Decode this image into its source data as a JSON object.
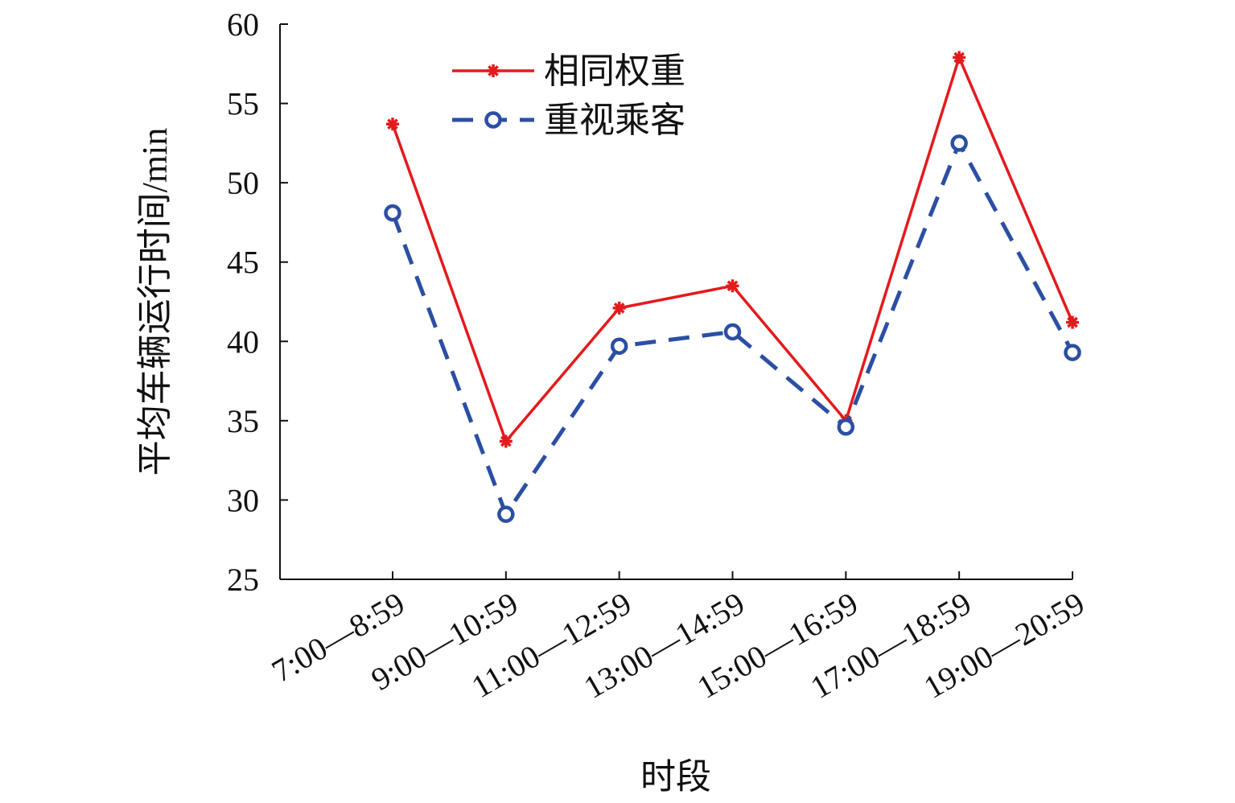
{
  "chart_data": {
    "type": "line",
    "xlabel": "时段",
    "ylabel": "平均车辆运行时间/min",
    "categories": [
      "7:00—8:59",
      "9:00—10:59",
      "11:00—12:59",
      "13:00—14:59",
      "15:00—16:59",
      "17:00—18:59",
      "19:00—20:59"
    ],
    "ylim": [
      25,
      60
    ],
    "yticks": [
      25,
      30,
      35,
      40,
      45,
      50,
      55,
      60
    ],
    "grid": false,
    "legend_position": "top",
    "series": [
      {
        "name": "相同权重",
        "values": [
          53.7,
          33.7,
          42.1,
          43.5,
          35.0,
          57.9,
          41.2
        ],
        "color": "#e41a1c",
        "line_style": "solid",
        "marker": "asterisk"
      },
      {
        "name": "重视乘客",
        "values": [
          48.1,
          29.1,
          39.7,
          40.6,
          34.6,
          52.5,
          39.3
        ],
        "color": "#2b4fa3",
        "line_style": "dashed",
        "marker": "circle"
      }
    ]
  }
}
